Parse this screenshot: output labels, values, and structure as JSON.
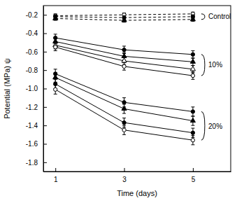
{
  "chart_data": {
    "type": "line",
    "x_label": "Time (days)",
    "y_label": "Potential (MPa) ψ",
    "color": "#000000",
    "x": [
      1,
      3,
      5
    ],
    "xlim": [
      0.65,
      6.1
    ],
    "xticks": [
      1,
      3,
      5
    ],
    "ylim": [
      -1.9,
      -0.1
    ],
    "yticks": [
      -0.2,
      -0.4,
      -0.6,
      -0.8,
      {
        "value": -1,
        "label": "-1.0"
      },
      -1.2,
      -1.4,
      -1.6,
      -1.8
    ],
    "grid": false,
    "series": [
      {
        "values": [
          -0.21,
          -0.2,
          -0.19
        ],
        "errors": [
          0.02,
          0.02,
          0.02
        ],
        "marker": "circle-open",
        "line_style": "dashed"
      },
      {
        "values": [
          -0.22,
          -0.23,
          -0.22
        ],
        "errors": [
          0.02,
          0.02,
          0.02
        ],
        "marker": "circle",
        "line_style": "dashed"
      },
      {
        "values": [
          -0.24,
          -0.26,
          -0.25
        ],
        "errors": [
          0.02,
          0.02,
          0.02
        ],
        "marker": "triangle",
        "line_style": "dashed"
      },
      {
        "values": [
          -0.45,
          -0.58,
          -0.63
        ],
        "errors": [
          0.04,
          0.04,
          0.04
        ],
        "marker": "circle",
        "line_style": "solid"
      },
      {
        "values": [
          -0.49,
          -0.65,
          -0.71
        ],
        "errors": [
          0.04,
          0.04,
          0.04
        ],
        "marker": "triangle",
        "line_style": "solid"
      },
      {
        "values": [
          -0.53,
          -0.7,
          -0.79
        ],
        "errors": [
          0.04,
          0.04,
          0.04
        ],
        "marker": "triangle-open",
        "line_style": "solid"
      },
      {
        "values": [
          -0.55,
          -0.76,
          -0.86
        ],
        "errors": [
          0.04,
          0.04,
          0.04
        ],
        "marker": "circle-open",
        "line_style": "solid"
      },
      {
        "values": [
          -0.84,
          -1.15,
          -1.25
        ],
        "errors": [
          0.05,
          0.05,
          0.05
        ],
        "marker": "circle",
        "line_style": "solid"
      },
      {
        "values": [
          -0.88,
          -1.22,
          -1.35
        ],
        "errors": [
          0.05,
          0.05,
          0.05
        ],
        "marker": "triangle",
        "line_style": "solid"
      },
      {
        "values": [
          -0.95,
          -1.37,
          -1.48
        ],
        "errors": [
          0.05,
          0.05,
          0.05
        ],
        "marker": "circle",
        "line_style": "solid"
      },
      {
        "values": [
          -1.01,
          -1.45,
          -1.56
        ],
        "errors": [
          0.05,
          0.05,
          0.05
        ],
        "marker": "circle-open",
        "line_style": "solid"
      }
    ],
    "annotations": [
      {
        "text": "Control",
        "x": 5.45,
        "y": -0.22
      },
      {
        "text": "10%",
        "x": 5.45,
        "y": -0.74
      },
      {
        "text": "20%",
        "x": 5.45,
        "y": -1.41
      }
    ]
  }
}
